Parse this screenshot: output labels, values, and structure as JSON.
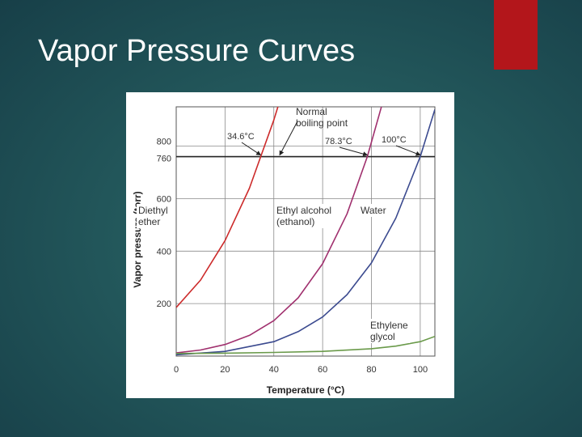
{
  "slide": {
    "title": "Vapor Pressure Curves",
    "accent_color": "#b3161b"
  },
  "chart_data": {
    "type": "line",
    "title": "",
    "xlabel": "Temperature (°C)",
    "ylabel": "Vapor pressure (torr)",
    "xlim": [
      0,
      106
    ],
    "ylim": [
      0,
      950
    ],
    "xticks": [
      0,
      20,
      40,
      60,
      80,
      100
    ],
    "yticks": [
      200,
      400,
      600,
      760,
      800
    ],
    "grid": true,
    "reference_line": {
      "y": 760
    },
    "series": [
      {
        "name": "Diethyl ether",
        "label_lines": [
          "Diethyl",
          "ether"
        ],
        "color": "#cc2a2a",
        "x": [
          0,
          10,
          20,
          30,
          34.6,
          40,
          45
        ],
        "y": [
          185,
          290,
          440,
          640,
          760,
          900,
          1050
        ]
      },
      {
        "name": "Ethyl alcohol (ethanol)",
        "label_lines": [
          "Ethyl alcohol",
          "(ethanol)"
        ],
        "color": "#a0306e",
        "x": [
          0,
          10,
          20,
          30,
          40,
          50,
          60,
          70,
          78.3,
          85
        ],
        "y": [
          12,
          23,
          44,
          79,
          135,
          222,
          352,
          542,
          760,
          980
        ]
      },
      {
        "name": "Water",
        "label_lines": [
          "Water"
        ],
        "color": "#3b4a8f",
        "x": [
          0,
          20,
          40,
          50,
          60,
          70,
          80,
          90,
          100,
          106
        ],
        "y": [
          5,
          18,
          55,
          93,
          149,
          234,
          355,
          526,
          760,
          940
        ]
      },
      {
        "name": "Ethylene glycol",
        "label_lines": [
          "Ethylene",
          "glycol"
        ],
        "color": "#6a9a4a",
        "x": [
          0,
          20,
          40,
          60,
          80,
          90,
          100,
          106
        ],
        "y": [
          10,
          11,
          14,
          18,
          28,
          38,
          55,
          75
        ]
      }
    ],
    "annotations": {
      "normal_boiling_point": [
        "Normal",
        "boiling point"
      ],
      "boiling_points": [
        {
          "label": "34.6°C",
          "x": 34.6
        },
        {
          "label": "78.3°C",
          "x": 78.3
        },
        {
          "label": "100°C",
          "x": 100
        }
      ]
    }
  }
}
